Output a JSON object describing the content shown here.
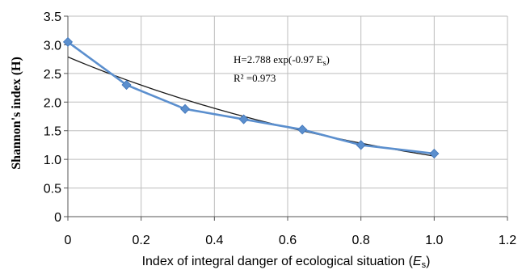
{
  "chart_data": {
    "type": "scatter",
    "title": "",
    "xlabel_prefix": "Index of integral danger of ecological situation (",
    "xlabel_var": "E",
    "xlabel_sub": "s",
    "xlabel_suffix": ")",
    "ylabel": "Shannon's index (H)",
    "xlim": [
      0,
      1.2
    ],
    "ylim": [
      0,
      3.5
    ],
    "xticks": [
      "0",
      "0.2",
      "0.4",
      "0.6",
      "0.8",
      "1.0",
      "1.2"
    ],
    "yticks": [
      "0",
      "0.5",
      "1.0",
      "1.5",
      "2.0",
      "2.5",
      "3.0",
      "3.5"
    ],
    "grid": true,
    "series": [
      {
        "x": [
          0,
          0.16,
          0.32,
          0.48,
          0.64,
          0.8,
          1.0
        ],
        "y": [
          3.05,
          2.3,
          1.88,
          1.7,
          1.52,
          1.25,
          1.1
        ],
        "color": "#5b8fce",
        "marker": "diamond"
      }
    ],
    "trendline": {
      "type": "exponential",
      "a": 2.788,
      "b": -0.97,
      "x_range": [
        0,
        1.0
      ],
      "color": "#1a1a1a"
    },
    "annotation": {
      "equation_prefix": "H=2.788 exp(-0.97 E",
      "equation_sub": "s",
      "equation_suffix": ")",
      "r2": "R² =0.973"
    }
  }
}
